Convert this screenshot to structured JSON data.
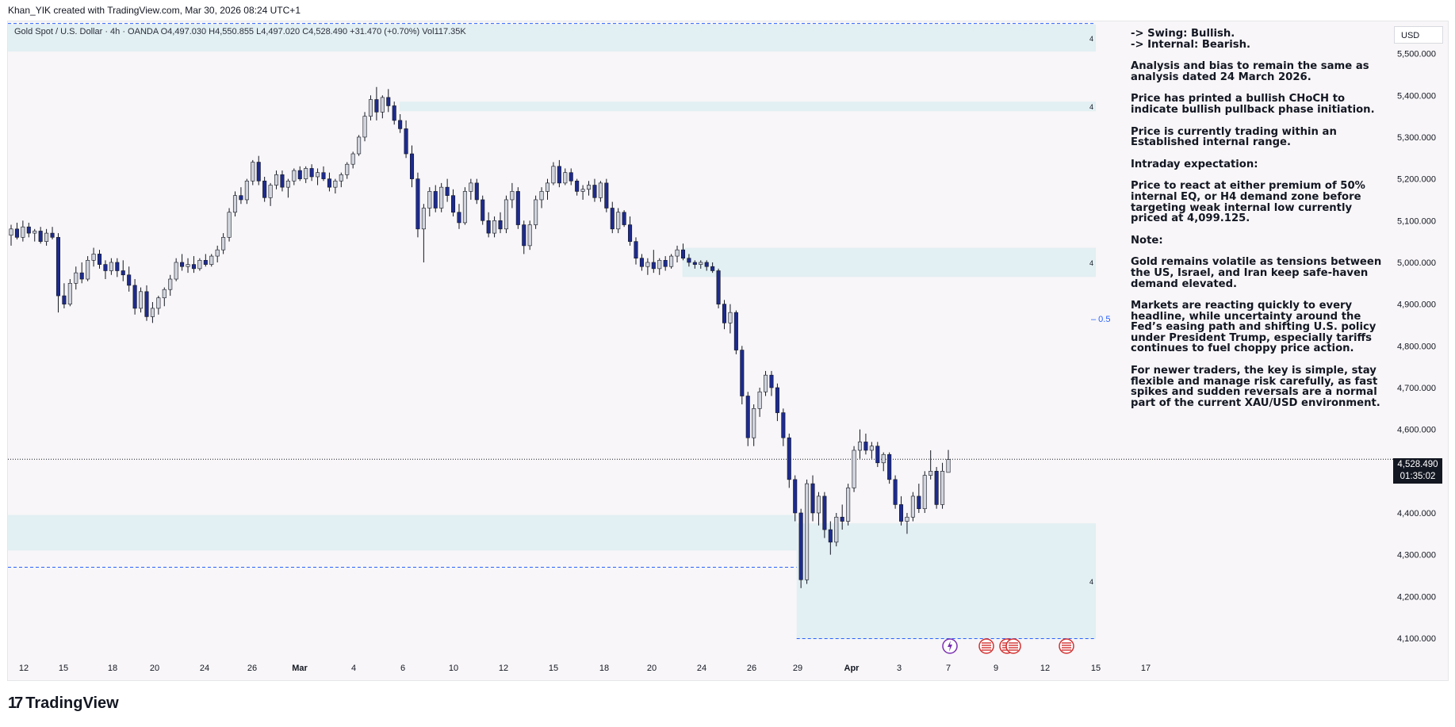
{
  "header": {
    "text": "Khan_YIK created with TradingView.com, Mar 30, 2026 08:24 UTC+1"
  },
  "legend": {
    "text": "Gold Spot / U.S. Dollar · 4h · OANDA  O4,497.030  H4,550.855  L4,497.020  C4,528.490  +31.470 (+0.70%)  Vol117.35K"
  },
  "currency_button": "USD",
  "last_price": {
    "price": "4,528.490",
    "countdown": "01:35:02"
  },
  "notes": [
    "-> Swing:  Bullish.\n-> Internal:  Bearish.",
    "Analysis and bias to remain the same as analysis dated 24 March 2026.",
    "Price has printed a bullish CHoCH to indicate bullish pullback phase initiation.",
    "Price is currently trading within an Established internal range.",
    "Intraday expectation:",
    "Price to react at either premium of 50% internal EQ, or H4 demand zone before targeting weak internal low currently priced at 4,099.125.",
    "Note:",
    "Gold remains volatile as tensions between the US, Israel, and Iran keep safe-haven demand elevated.",
    "Markets are reacting quickly to every headline, while uncertainty around the Fed’s easing path and shifting U.S. policy under President Trump, especially tariffs continues to fuel choppy price action.",
    "For newer traders, the key is simple, stay flexible and manage risk carefully, as fast spikes and sudden reversals are a normal part of the current XAU/USD environment."
  ],
  "logo": {
    "text": "TradingView"
  },
  "colors": {
    "zone": "#dcedf1",
    "candle_up": "#d1d4dc",
    "candle_down": "#1d2b8f",
    "dashed_line": "#2962ff",
    "eq_label": "#2962ff"
  },
  "chart_data": {
    "type": "candlestick",
    "symbol": "Gold Spot / U.S. Dollar",
    "timeframe": "4h",
    "ylim": [
      4075,
      5575
    ],
    "y_ticks": [
      "5,500.000",
      "5,400.000",
      "5,300.000",
      "5,200.000",
      "5,100.000",
      "5,000.000",
      "4,900.000",
      "4,800.000",
      "4,700.000",
      "4,600.000",
      "4,400.000",
      "4,300.000",
      "4,200.000",
      "4,100.000"
    ],
    "x_ticks": [
      "12",
      "15",
      "18",
      "20",
      "24",
      "26",
      "Mar",
      "4",
      "6",
      "10",
      "12",
      "15",
      "18",
      "20",
      "24",
      "26",
      "29",
      "Apr",
      "3",
      "7",
      "9",
      "12",
      "15",
      "17"
    ],
    "x_tick_positions": [
      30,
      80,
      142,
      195,
      258,
      318,
      378,
      446,
      508,
      572,
      635,
      698,
      762,
      822,
      885,
      948,
      1006,
      1074,
      1134,
      1196,
      1256,
      1318,
      1382,
      1445
    ],
    "zones": [
      {
        "high": 5570,
        "low": 5505,
        "label": "4",
        "from": 0,
        "to": 1
      },
      {
        "high": 5385,
        "low": 5362,
        "label": "4",
        "from": 0.36,
        "to": 1
      },
      {
        "high": 5035,
        "low": 4965,
        "label": "4",
        "from": 0.62,
        "to": 1
      },
      {
        "high": 4395,
        "low": 4310,
        "label": "",
        "from": 0,
        "to": 0.725
      },
      {
        "high": 4375,
        "low": 4098,
        "label": "4",
        "from": 0.725,
        "to": 1
      }
    ],
    "eq_level": {
      "value": 4865,
      "label": "0.5"
    },
    "dashed_levels": [
      {
        "value": 5572,
        "from": 0,
        "to": 1
      },
      {
        "value": 4270,
        "from": 0,
        "to": 0.725
      },
      {
        "value": 4099,
        "from": 0.725,
        "to": 1
      }
    ],
    "last_price": 4528.49,
    "candles": [
      [
        5065,
        5090,
        5040,
        5080
      ],
      [
        5080,
        5095,
        5055,
        5060
      ],
      [
        5060,
        5100,
        5050,
        5085
      ],
      [
        5085,
        5095,
        5060,
        5070
      ],
      [
        5070,
        5080,
        5050,
        5075
      ],
      [
        5075,
        5085,
        5045,
        5050
      ],
      [
        5050,
        5080,
        5040,
        5070
      ],
      [
        5070,
        5085,
        5055,
        5060
      ],
      [
        5060,
        5070,
        4880,
        4920
      ],
      [
        4920,
        4950,
        4890,
        4900
      ],
      [
        4900,
        4960,
        4895,
        4950
      ],
      [
        4950,
        4990,
        4935,
        4975
      ],
      [
        4975,
        5000,
        4950,
        4960
      ],
      [
        4960,
        5015,
        4955,
        5005
      ],
      [
        5005,
        5035,
        4990,
        5020
      ],
      [
        5020,
        5030,
        4985,
        4995
      ],
      [
        4995,
        5005,
        4960,
        4980
      ],
      [
        4980,
        5010,
        4970,
        5000
      ],
      [
        5000,
        5010,
        4965,
        4980
      ],
      [
        4980,
        5005,
        4955,
        4970
      ],
      [
        4970,
        4990,
        4930,
        4945
      ],
      [
        4945,
        4960,
        4875,
        4890
      ],
      [
        4890,
        4940,
        4880,
        4930
      ],
      [
        4930,
        4945,
        4860,
        4870
      ],
      [
        4870,
        4905,
        4855,
        4890
      ],
      [
        4890,
        4920,
        4875,
        4915
      ],
      [
        4915,
        4940,
        4895,
        4935
      ],
      [
        4935,
        4970,
        4920,
        4960
      ],
      [
        4960,
        5010,
        4955,
        5000
      ],
      [
        5000,
        5020,
        4980,
        4990
      ],
      [
        4990,
        5010,
        4975,
        4995
      ],
      [
        4995,
        5015,
        4975,
        4985
      ],
      [
        4985,
        5010,
        4980,
        5005
      ],
      [
        5005,
        5020,
        4990,
        4995
      ],
      [
        4995,
        5020,
        4990,
        5015
      ],
      [
        5015,
        5040,
        5000,
        5030
      ],
      [
        5030,
        5070,
        5020,
        5060
      ],
      [
        5060,
        5130,
        5050,
        5120
      ],
      [
        5120,
        5170,
        5110,
        5160
      ],
      [
        5160,
        5180,
        5140,
        5150
      ],
      [
        5150,
        5200,
        5140,
        5195
      ],
      [
        5195,
        5245,
        5185,
        5240
      ],
      [
        5240,
        5255,
        5185,
        5195
      ],
      [
        5195,
        5205,
        5145,
        5155
      ],
      [
        5155,
        5190,
        5135,
        5185
      ],
      [
        5185,
        5220,
        5175,
        5210
      ],
      [
        5210,
        5220,
        5170,
        5180
      ],
      [
        5180,
        5200,
        5155,
        5195
      ],
      [
        5195,
        5225,
        5185,
        5220
      ],
      [
        5220,
        5230,
        5195,
        5200
      ],
      [
        5200,
        5230,
        5190,
        5225
      ],
      [
        5225,
        5235,
        5195,
        5205
      ],
      [
        5205,
        5225,
        5185,
        5215
      ],
      [
        5215,
        5230,
        5195,
        5200
      ],
      [
        5200,
        5215,
        5170,
        5180
      ],
      [
        5180,
        5200,
        5165,
        5195
      ],
      [
        5195,
        5215,
        5180,
        5210
      ],
      [
        5210,
        5240,
        5200,
        5235
      ],
      [
        5235,
        5265,
        5225,
        5260
      ],
      [
        5260,
        5305,
        5255,
        5300
      ],
      [
        5300,
        5360,
        5290,
        5350
      ],
      [
        5350,
        5400,
        5340,
        5390
      ],
      [
        5390,
        5420,
        5340,
        5360
      ],
      [
        5360,
        5400,
        5345,
        5395
      ],
      [
        5395,
        5415,
        5360,
        5375
      ],
      [
        5375,
        5385,
        5330,
        5340
      ],
      [
        5340,
        5355,
        5310,
        5320
      ],
      [
        5320,
        5340,
        5250,
        5260
      ],
      [
        5260,
        5280,
        5180,
        5200
      ],
      [
        5200,
        5215,
        5060,
        5080
      ],
      [
        5080,
        5140,
        5000,
        5130
      ],
      [
        5130,
        5180,
        5110,
        5170
      ],
      [
        5170,
        5185,
        5120,
        5130
      ],
      [
        5130,
        5190,
        5120,
        5180
      ],
      [
        5180,
        5200,
        5145,
        5160
      ],
      [
        5160,
        5175,
        5110,
        5120
      ],
      [
        5120,
        5140,
        5080,
        5095
      ],
      [
        5095,
        5180,
        5090,
        5170
      ],
      [
        5170,
        5200,
        5150,
        5190
      ],
      [
        5190,
        5200,
        5140,
        5150
      ],
      [
        5150,
        5160,
        5090,
        5100
      ],
      [
        5100,
        5120,
        5060,
        5070
      ],
      [
        5070,
        5110,
        5060,
        5100
      ],
      [
        5100,
        5120,
        5070,
        5080
      ],
      [
        5080,
        5160,
        5070,
        5150
      ],
      [
        5150,
        5190,
        5130,
        5170
      ],
      [
        5170,
        5180,
        5080,
        5090
      ],
      [
        5090,
        5100,
        5020,
        5040
      ],
      [
        5040,
        5100,
        5030,
        5090
      ],
      [
        5090,
        5160,
        5080,
        5150
      ],
      [
        5150,
        5180,
        5130,
        5170
      ],
      [
        5170,
        5200,
        5150,
        5190
      ],
      [
        5190,
        5240,
        5185,
        5230
      ],
      [
        5230,
        5245,
        5180,
        5190
      ],
      [
        5190,
        5225,
        5185,
        5215
      ],
      [
        5215,
        5225,
        5185,
        5195
      ],
      [
        5195,
        5200,
        5160,
        5170
      ],
      [
        5170,
        5185,
        5150,
        5175
      ],
      [
        5175,
        5195,
        5160,
        5185
      ],
      [
        5185,
        5200,
        5145,
        5155
      ],
      [
        5155,
        5195,
        5145,
        5190
      ],
      [
        5190,
        5200,
        5120,
        5130
      ],
      [
        5130,
        5145,
        5070,
        5080
      ],
      [
        5080,
        5130,
        5070,
        5120
      ],
      [
        5120,
        5125,
        5085,
        5090
      ],
      [
        5090,
        5110,
        5040,
        5050
      ],
      [
        5050,
        5060,
        4995,
        5010
      ],
      [
        5010,
        5020,
        4980,
        4990
      ],
      [
        4990,
        5010,
        4970,
        5000
      ],
      [
        5000,
        5030,
        4975,
        4985
      ],
      [
        4985,
        5010,
        4970,
        5005
      ],
      [
        5005,
        5015,
        4980,
        4990
      ],
      [
        4990,
        5020,
        4985,
        5015
      ],
      [
        5015,
        5040,
        5000,
        5030
      ],
      [
        5030,
        5045,
        5005,
        5010
      ],
      [
        5010,
        5020,
        4990,
        5000
      ],
      [
        5000,
        5005,
        4985,
        4995
      ],
      [
        4995,
        5005,
        4985,
        5000
      ],
      [
        5000,
        5005,
        4980,
        4990
      ],
      [
        4990,
        5000,
        4975,
        4980
      ],
      [
        4980,
        4985,
        4890,
        4900
      ],
      [
        4900,
        4910,
        4840,
        4855
      ],
      [
        4855,
        4900,
        4830,
        4880
      ],
      [
        4880,
        4885,
        4780,
        4790
      ],
      [
        4790,
        4800,
        4660,
        4680
      ],
      [
        4680,
        4690,
        4560,
        4580
      ],
      [
        4580,
        4660,
        4560,
        4650
      ],
      [
        4650,
        4700,
        4630,
        4690
      ],
      [
        4690,
        4740,
        4680,
        4730
      ],
      [
        4730,
        4740,
        4680,
        4700
      ],
      [
        4700,
        4710,
        4620,
        4640
      ],
      [
        4640,
        4650,
        4560,
        4580
      ],
      [
        4580,
        4590,
        4460,
        4480
      ],
      [
        4480,
        4490,
        4380,
        4400
      ],
      [
        4400,
        4410,
        4220,
        4240
      ],
      [
        4240,
        4480,
        4230,
        4470
      ],
      [
        4470,
        4490,
        4380,
        4400
      ],
      [
        4400,
        4450,
        4370,
        4440
      ],
      [
        4440,
        4450,
        4340,
        4360
      ],
      [
        4360,
        4380,
        4300,
        4330
      ],
      [
        4330,
        4400,
        4320,
        4390
      ],
      [
        4390,
        4420,
        4360,
        4380
      ],
      [
        4380,
        4470,
        4370,
        4460
      ],
      [
        4460,
        4560,
        4450,
        4550
      ],
      [
        4550,
        4600,
        4530,
        4570
      ],
      [
        4570,
        4590,
        4540,
        4550
      ],
      [
        4550,
        4570,
        4530,
        4560
      ],
      [
        4560,
        4570,
        4510,
        4520
      ],
      [
        4520,
        4545,
        4500,
        4540
      ],
      [
        4540,
        4545,
        4470,
        4480
      ],
      [
        4480,
        4490,
        4410,
        4420
      ],
      [
        4420,
        4440,
        4370,
        4380
      ],
      [
        4380,
        4400,
        4350,
        4390
      ],
      [
        4390,
        4450,
        4380,
        4440
      ],
      [
        4440,
        4470,
        4400,
        4410
      ],
      [
        4410,
        4500,
        4400,
        4490
      ],
      [
        4490,
        4550,
        4480,
        4500
      ],
      [
        4500,
        4510,
        4410,
        4420
      ],
      [
        4420,
        4520,
        4410,
        4500
      ],
      [
        4497,
        4551,
        4497,
        4528
      ]
    ]
  }
}
